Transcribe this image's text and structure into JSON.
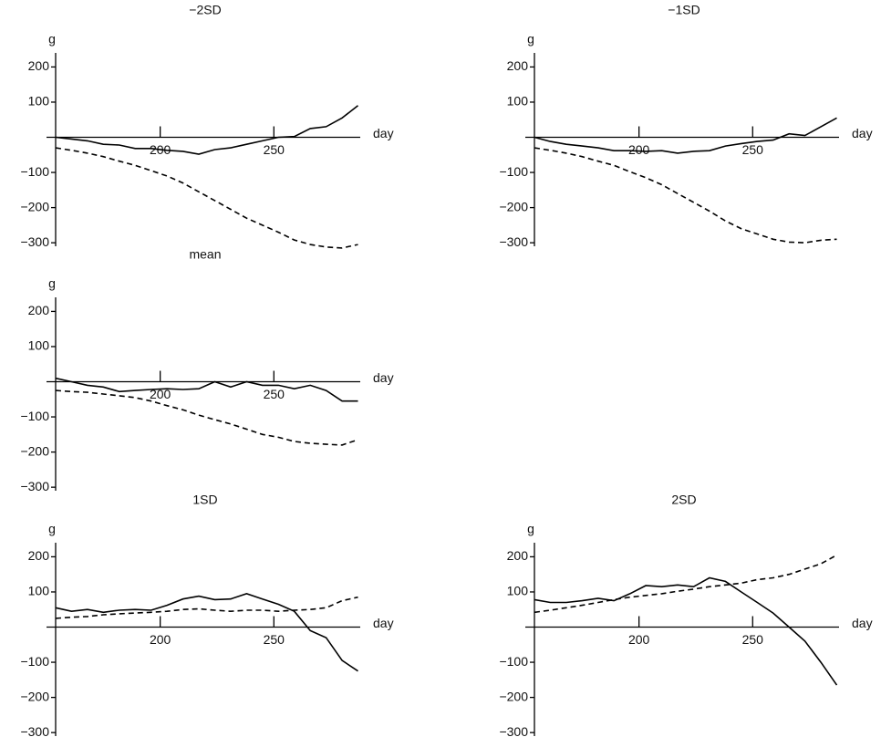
{
  "chart_data": [
    {
      "type": "line",
      "title": "−2SD",
      "xlabel": "day",
      "ylabel": "g",
      "x": [
        154,
        161,
        168,
        175,
        182,
        189,
        196,
        203,
        210,
        217,
        224,
        231,
        238,
        245,
        252,
        259,
        266,
        273,
        280,
        287
      ],
      "xlim": [
        154,
        288
      ],
      "xticks": [
        200,
        250
      ],
      "ylim": [
        -310,
        240
      ],
      "yticks": [
        {
          "value": -300,
          "label": "−300"
        },
        {
          "value": -200,
          "label": "−200"
        },
        {
          "value": -100,
          "label": "−100"
        },
        100,
        200
      ],
      "series": [
        {
          "color": "#000000",
          "style": "solid",
          "values": [
            0,
            -5,
            -10,
            -20,
            -22,
            -32,
            -32,
            -37,
            -40,
            -48,
            -35,
            -30,
            -20,
            -10,
            0,
            2,
            25,
            30,
            55,
            90
          ]
        },
        {
          "color": "#000000",
          "style": "dashed",
          "values": [
            -30,
            -37,
            -45,
            -55,
            -68,
            -80,
            -95,
            -110,
            -130,
            -155,
            -180,
            -205,
            -230,
            -250,
            -270,
            -292,
            -305,
            -312,
            -315,
            -305
          ]
        }
      ]
    },
    {
      "type": "line",
      "title": "−1SD",
      "xlabel": "day",
      "ylabel": "g",
      "x": [
        154,
        161,
        168,
        175,
        182,
        189,
        196,
        203,
        210,
        217,
        224,
        231,
        238,
        245,
        252,
        259,
        266,
        273,
        280,
        287
      ],
      "xlim": [
        154,
        288
      ],
      "xticks": [
        200,
        250
      ],
      "ylim": [
        -310,
        240
      ],
      "yticks": [
        {
          "value": -300,
          "label": "−300"
        },
        {
          "value": -200,
          "label": "−200"
        },
        {
          "value": -100,
          "label": "−100"
        },
        100,
        200
      ],
      "series": [
        {
          "color": "#000000",
          "style": "solid",
          "values": [
            0,
            -12,
            -20,
            -25,
            -30,
            -38,
            -38,
            -40,
            -38,
            -45,
            -40,
            -38,
            -25,
            -18,
            -12,
            -8,
            10,
            5,
            30,
            55
          ]
        },
        {
          "color": "#000000",
          "style": "dashed",
          "values": [
            -30,
            -37,
            -45,
            -55,
            -68,
            -80,
            -98,
            -115,
            -135,
            -160,
            -185,
            -210,
            -238,
            -260,
            -275,
            -290,
            -298,
            -300,
            -293,
            -290
          ]
        }
      ]
    },
    {
      "type": "line",
      "title": "mean",
      "xlabel": "day",
      "ylabel": "g",
      "x": [
        154,
        161,
        168,
        175,
        182,
        189,
        196,
        203,
        210,
        217,
        224,
        231,
        238,
        245,
        252,
        259,
        266,
        273,
        280,
        287
      ],
      "xlim": [
        154,
        288
      ],
      "xticks": [
        200,
        250
      ],
      "ylim": [
        -310,
        240
      ],
      "yticks": [
        {
          "value": -300,
          "label": "−300"
        },
        {
          "value": -200,
          "label": "−200"
        },
        {
          "value": -100,
          "label": "−100"
        },
        100,
        200
      ],
      "series": [
        {
          "color": "#000000",
          "style": "solid",
          "values": [
            10,
            0,
            -10,
            -15,
            -28,
            -25,
            -22,
            -20,
            -22,
            -20,
            0,
            -15,
            0,
            -10,
            -10,
            -20,
            -10,
            -25,
            -55,
            -55
          ]
        },
        {
          "color": "#000000",
          "style": "dashed",
          "values": [
            -25,
            -28,
            -30,
            -35,
            -40,
            -45,
            -55,
            -68,
            -80,
            -95,
            -108,
            -120,
            -135,
            -150,
            -158,
            -170,
            -175,
            -178,
            -180,
            -165
          ]
        }
      ]
    },
    {
      "type": "line",
      "title": "1SD",
      "xlabel": "day",
      "ylabel": "g",
      "x": [
        154,
        161,
        168,
        175,
        182,
        189,
        196,
        203,
        210,
        217,
        224,
        231,
        238,
        245,
        252,
        259,
        266,
        273,
        280,
        287
      ],
      "xlim": [
        154,
        288
      ],
      "xticks": [
        200,
        250
      ],
      "ylim": [
        -310,
        240
      ],
      "yticks": [
        {
          "value": -300,
          "label": "−300"
        },
        {
          "value": -200,
          "label": "−200"
        },
        {
          "value": -100,
          "label": "−100"
        },
        100,
        200
      ],
      "series": [
        {
          "color": "#000000",
          "style": "solid",
          "values": [
            55,
            45,
            50,
            42,
            48,
            50,
            48,
            62,
            80,
            88,
            78,
            80,
            95,
            80,
            65,
            45,
            -10,
            -30,
            -95,
            -125
          ]
        },
        {
          "color": "#000000",
          "style": "dashed",
          "values": [
            25,
            28,
            30,
            35,
            38,
            40,
            42,
            45,
            50,
            52,
            48,
            45,
            48,
            48,
            45,
            48,
            50,
            55,
            75,
            85
          ]
        }
      ]
    },
    {
      "type": "line",
      "title": "2SD",
      "xlabel": "day",
      "ylabel": "g",
      "x": [
        154,
        161,
        168,
        175,
        182,
        189,
        196,
        203,
        210,
        217,
        224,
        231,
        238,
        245,
        252,
        259,
        266,
        273,
        280,
        287
      ],
      "xlim": [
        154,
        288
      ],
      "xticks": [
        200,
        250
      ],
      "ylim": [
        -310,
        240
      ],
      "yticks": [
        {
          "value": -300,
          "label": "−300"
        },
        {
          "value": -200,
          "label": "−200"
        },
        {
          "value": -100,
          "label": "−100"
        },
        100,
        200
      ],
      "series": [
        {
          "color": "#000000",
          "style": "solid",
          "values": [
            78,
            70,
            70,
            75,
            82,
            75,
            95,
            118,
            115,
            120,
            115,
            140,
            130,
            100,
            70,
            40,
            0,
            -40,
            -100,
            -165
          ]
        },
        {
          "color": "#000000",
          "style": "dashed",
          "values": [
            42,
            48,
            55,
            62,
            70,
            78,
            85,
            90,
            95,
            102,
            108,
            115,
            120,
            125,
            135,
            140,
            150,
            165,
            180,
            205
          ]
        }
      ]
    }
  ]
}
